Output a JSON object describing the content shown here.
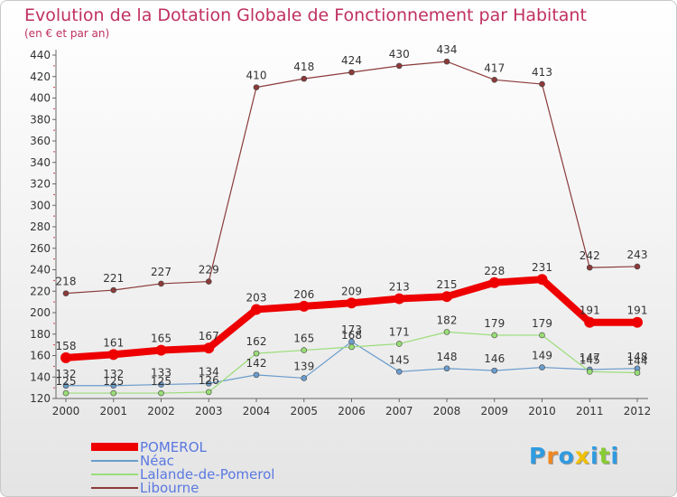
{
  "header": {
    "title": "Evolution de la Dotation Globale de Fonctionnement par Habitant",
    "subtitle": "(en € et par an)"
  },
  "chart_data": {
    "type": "line",
    "title": "Evolution de la Dotation Globale de Fonctionnement par Habitant",
    "subtitle": "(en € et par an)",
    "xlabel": "",
    "ylabel": "",
    "x": [
      "2000",
      "2001",
      "2002",
      "2003",
      "2004",
      "2005",
      "2006",
      "2007",
      "2008",
      "2009",
      "2010",
      "2011",
      "2012"
    ],
    "ylim": [
      120,
      440
    ],
    "yticks": [
      120,
      140,
      160,
      180,
      200,
      220,
      240,
      260,
      280,
      300,
      320,
      340,
      360,
      380,
      400,
      420,
      440
    ],
    "grid": false,
    "legend_position": "bottom-left",
    "series": [
      {
        "name": "POMEROL",
        "color": "#ee0000",
        "width": "thick",
        "values": [
          158,
          161,
          165,
          167,
          203,
          206,
          209,
          213,
          215,
          228,
          231,
          191,
          191
        ],
        "labels": [
          "158",
          "161",
          "165",
          "167",
          "203",
          "206",
          "209",
          "213",
          "215",
          "228",
          "231",
          "191",
          "191"
        ]
      },
      {
        "name": "Néac",
        "color": "#6a9ccc",
        "width": "thin",
        "values": [
          132,
          132,
          133,
          134,
          142,
          139,
          173,
          145,
          148,
          146,
          149,
          147,
          148
        ],
        "labels": [
          "132",
          "132",
          "133",
          "134",
          "142",
          "139",
          "173",
          "145",
          "148",
          "146",
          "149",
          "147",
          "148"
        ]
      },
      {
        "name": "Lalande-de-Pomerol",
        "color": "#99dd77",
        "width": "thin",
        "values": [
          125,
          125,
          125,
          126,
          162,
          165,
          168,
          171,
          182,
          179,
          179,
          145,
          144
        ],
        "labels": [
          "125",
          "125",
          "125",
          "126",
          "162",
          "165",
          "168",
          "171",
          "182",
          "179",
          "179",
          "145",
          "144"
        ]
      },
      {
        "name": "Libourne",
        "color": "#8b3a3a",
        "width": "thin",
        "values": [
          218,
          221,
          227,
          229,
          410,
          418,
          424,
          430,
          434,
          417,
          413,
          242,
          243
        ],
        "labels": [
          "218",
          "221",
          "227",
          "229",
          "410",
          "418",
          "424",
          "430",
          "434",
          "417",
          "413",
          "242",
          "243"
        ]
      }
    ]
  },
  "branding": {
    "logo_letters": [
      "P",
      "r",
      "o",
      "x",
      "i",
      "t",
      "i"
    ],
    "logo_colors": [
      "#2f9be0",
      "#f08820",
      "#2f9be0",
      "#f0c000",
      "#2f9be0",
      "#88cc33",
      "#2f9be0"
    ]
  }
}
